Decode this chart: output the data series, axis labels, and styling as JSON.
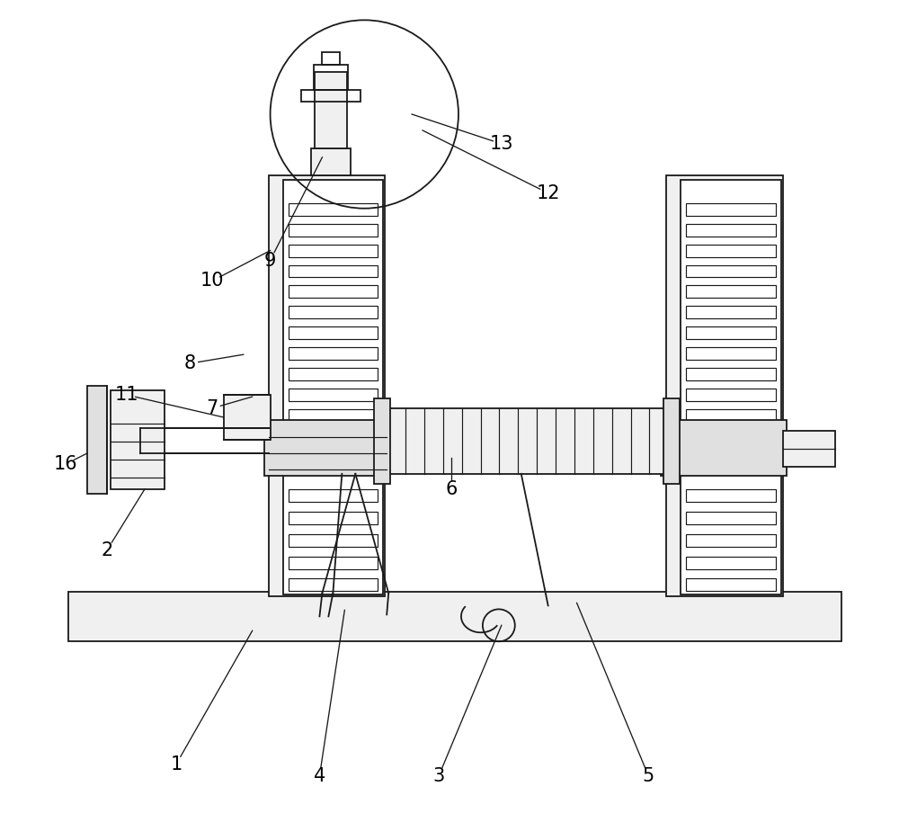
{
  "bg_color": "#ffffff",
  "lc": "#1a1a1a",
  "fill_light": "#f0f0f0",
  "fill_mid": "#e0e0e0",
  "fill_white": "#ffffff",
  "fig_width": 10.0,
  "fig_height": 9.34,
  "lw": 1.3,
  "lt": 0.85,
  "label_fs": 15
}
